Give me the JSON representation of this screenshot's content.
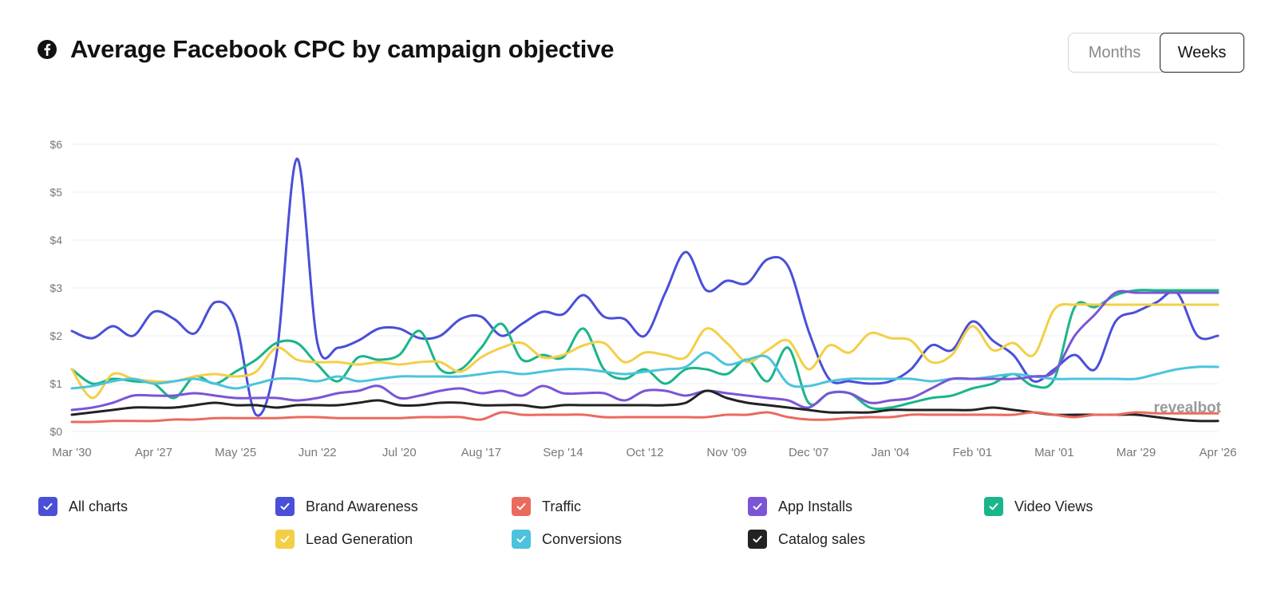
{
  "header": {
    "title": "Average Facebook CPC by campaign objective"
  },
  "toggle": {
    "months_label": "Months",
    "weeks_label": "Weeks",
    "selected": "Weeks"
  },
  "watermark": "revealbot",
  "legend": {
    "items": [
      {
        "label": "All charts",
        "color": "#4a4fd8",
        "checked": true
      },
      {
        "label": "Brand Awareness",
        "color": "#4a4fd8",
        "checked": true
      },
      {
        "label": "Traffic",
        "color": "#ea6a5e",
        "checked": true
      },
      {
        "label": "App Installs",
        "color": "#7b55d6",
        "checked": true
      },
      {
        "label": "Video Views",
        "color": "#1ab58a",
        "checked": true
      },
      {
        "label": "Lead Generation",
        "color": "#f3cf45",
        "checked": true
      },
      {
        "label": "Conversions",
        "color": "#4cc3dd",
        "checked": true
      },
      {
        "label": "Catalog sales",
        "color": "#222222",
        "checked": true
      }
    ]
  },
  "chart_data": {
    "type": "line",
    "title": "Average Facebook CPC by campaign objective",
    "xlabel": "",
    "ylabel": "",
    "x_tick_labels": [
      "Mar '30",
      "Apr '27",
      "May '25",
      "Jun '22",
      "Jul '20",
      "Aug '17",
      "Sep '14",
      "Oct '12",
      "Nov '09",
      "Dec '07",
      "Jan '04",
      "Feb '01",
      "Mar '01",
      "Mar '29",
      "Apr '26"
    ],
    "x_range": [
      0,
      56
    ],
    "ylim": [
      0,
      6
    ],
    "y_ticks": [
      0,
      1,
      2,
      3,
      4,
      5,
      6
    ],
    "y_tick_labels": [
      "$0",
      "$1",
      "$2",
      "$3",
      "$4",
      "$5",
      "$6"
    ],
    "grid": "horizontal",
    "legend_position": "bottom",
    "series": [
      {
        "name": "Brand Awareness",
        "color": "#4a4fd8",
        "x": [
          0,
          1,
          2,
          3,
          4,
          5,
          6,
          7,
          8,
          9,
          10,
          11,
          12,
          13,
          14,
          15,
          16,
          17,
          18,
          19,
          20,
          21,
          22,
          23,
          24,
          25,
          26,
          27,
          28,
          29,
          30,
          31,
          32,
          33,
          34,
          35,
          36,
          37,
          38,
          39,
          40,
          41,
          42,
          43,
          44,
          45,
          46,
          47,
          48,
          49,
          50,
          51,
          52,
          53,
          54,
          55,
          56
        ],
        "values": [
          2.1,
          1.95,
          2.2,
          2.0,
          2.5,
          2.35,
          2.05,
          2.7,
          2.3,
          0.35,
          1.6,
          5.7,
          1.85,
          1.75,
          1.9,
          2.15,
          2.15,
          1.95,
          2.0,
          2.35,
          2.4,
          2.0,
          2.25,
          2.5,
          2.45,
          2.85,
          2.4,
          2.35,
          2.0,
          2.9,
          3.75,
          2.95,
          3.15,
          3.1,
          3.6,
          3.45,
          2.1,
          1.1,
          1.05,
          1.0,
          1.05,
          1.3,
          1.8,
          1.7,
          2.3,
          1.9,
          1.6,
          1.05,
          1.3,
          1.6,
          1.3,
          2.3,
          2.5,
          2.7,
          2.9,
          2.0,
          2.0
        ]
      },
      {
        "name": "Video Views",
        "color": "#1ab58a",
        "x": [
          0,
          1,
          2,
          3,
          4,
          5,
          6,
          7,
          8,
          9,
          10,
          11,
          12,
          13,
          14,
          15,
          16,
          17,
          18,
          19,
          20,
          21,
          22,
          23,
          24,
          25,
          26,
          27,
          28,
          29,
          30,
          31,
          32,
          33,
          34,
          35,
          36,
          37,
          38,
          39,
          40,
          41,
          42,
          43,
          44,
          45,
          46,
          47,
          48,
          49,
          50,
          51,
          52,
          53,
          54,
          55,
          56
        ],
        "values": [
          1.3,
          1.0,
          1.1,
          1.05,
          1.0,
          0.7,
          1.15,
          1.0,
          1.25,
          1.5,
          1.85,
          1.85,
          1.4,
          1.05,
          1.55,
          1.5,
          1.6,
          2.1,
          1.3,
          1.3,
          1.75,
          2.25,
          1.5,
          1.6,
          1.55,
          2.15,
          1.3,
          1.1,
          1.3,
          1.0,
          1.3,
          1.3,
          1.2,
          1.5,
          1.05,
          1.75,
          0.6,
          0.8,
          0.8,
          0.5,
          0.5,
          0.6,
          0.7,
          0.75,
          0.9,
          1.0,
          1.2,
          0.95,
          1.1,
          2.6,
          2.6,
          2.85,
          2.95,
          2.95,
          2.95,
          2.95,
          2.95
        ]
      },
      {
        "name": "Lead Generation",
        "color": "#f3cf45",
        "x": [
          0,
          1,
          2,
          3,
          4,
          5,
          6,
          7,
          8,
          9,
          10,
          11,
          12,
          13,
          14,
          15,
          16,
          17,
          18,
          19,
          20,
          21,
          22,
          23,
          24,
          25,
          26,
          27,
          28,
          29,
          30,
          31,
          32,
          33,
          34,
          35,
          36,
          37,
          38,
          39,
          40,
          41,
          42,
          43,
          44,
          45,
          46,
          47,
          48,
          49,
          50,
          51,
          52,
          53,
          54,
          55,
          56
        ],
        "values": [
          1.3,
          0.7,
          1.2,
          1.1,
          1.05,
          1.05,
          1.15,
          1.2,
          1.15,
          1.25,
          1.75,
          1.5,
          1.45,
          1.45,
          1.4,
          1.45,
          1.4,
          1.45,
          1.45,
          1.25,
          1.55,
          1.75,
          1.85,
          1.55,
          1.6,
          1.8,
          1.85,
          1.45,
          1.65,
          1.6,
          1.55,
          2.15,
          1.85,
          1.45,
          1.7,
          1.9,
          1.3,
          1.8,
          1.65,
          2.05,
          1.95,
          1.9,
          1.45,
          1.6,
          2.2,
          1.7,
          1.85,
          1.6,
          2.55,
          2.65,
          2.65,
          2.65,
          2.65,
          2.65,
          2.65,
          2.65,
          2.65
        ]
      },
      {
        "name": "Conversions",
        "color": "#4cc3dd",
        "x": [
          0,
          1,
          2,
          3,
          4,
          5,
          6,
          7,
          8,
          9,
          10,
          11,
          12,
          13,
          14,
          15,
          16,
          17,
          18,
          19,
          20,
          21,
          22,
          23,
          24,
          25,
          26,
          27,
          28,
          29,
          30,
          31,
          32,
          33,
          34,
          35,
          36,
          37,
          38,
          39,
          40,
          41,
          42,
          43,
          44,
          45,
          46,
          47,
          48,
          49,
          50,
          51,
          52,
          53,
          54,
          55,
          56
        ],
        "values": [
          0.9,
          0.95,
          1.05,
          1.1,
          1.0,
          1.05,
          1.1,
          1.0,
          0.9,
          1.0,
          1.1,
          1.1,
          1.05,
          1.15,
          1.05,
          1.1,
          1.15,
          1.15,
          1.15,
          1.15,
          1.2,
          1.25,
          1.2,
          1.25,
          1.3,
          1.3,
          1.25,
          1.2,
          1.25,
          1.3,
          1.35,
          1.65,
          1.4,
          1.5,
          1.55,
          1.0,
          0.95,
          1.05,
          1.1,
          1.1,
          1.1,
          1.1,
          1.05,
          1.1,
          1.1,
          1.15,
          1.2,
          1.15,
          1.1,
          1.1,
          1.1,
          1.1,
          1.1,
          1.2,
          1.3,
          1.35,
          1.35
        ]
      },
      {
        "name": "App Installs",
        "color": "#7b55d6",
        "x": [
          0,
          1,
          2,
          3,
          4,
          5,
          6,
          7,
          8,
          9,
          10,
          11,
          12,
          13,
          14,
          15,
          16,
          17,
          18,
          19,
          20,
          21,
          22,
          23,
          24,
          25,
          26,
          27,
          28,
          29,
          30,
          31,
          32,
          33,
          34,
          35,
          36,
          37,
          38,
          39,
          40,
          41,
          42,
          43,
          44,
          45,
          46,
          47,
          48,
          49,
          50,
          51,
          52,
          53,
          54,
          55,
          56
        ],
        "values": [
          0.45,
          0.5,
          0.6,
          0.75,
          0.75,
          0.75,
          0.8,
          0.75,
          0.7,
          0.7,
          0.7,
          0.65,
          0.7,
          0.8,
          0.85,
          0.95,
          0.7,
          0.75,
          0.85,
          0.9,
          0.8,
          0.85,
          0.75,
          0.95,
          0.8,
          0.8,
          0.8,
          0.65,
          0.85,
          0.85,
          0.75,
          0.85,
          0.8,
          0.75,
          0.7,
          0.65,
          0.5,
          0.8,
          0.8,
          0.6,
          0.65,
          0.7,
          0.9,
          1.1,
          1.1,
          1.1,
          1.1,
          1.15,
          1.25,
          2.0,
          2.45,
          2.9,
          2.9,
          2.9,
          2.9,
          2.9,
          2.9
        ]
      },
      {
        "name": "Catalog sales",
        "color": "#222222",
        "x": [
          0,
          1,
          2,
          3,
          4,
          5,
          6,
          7,
          8,
          9,
          10,
          11,
          12,
          13,
          14,
          15,
          16,
          17,
          18,
          19,
          20,
          21,
          22,
          23,
          24,
          25,
          26,
          27,
          28,
          29,
          30,
          31,
          32,
          33,
          34,
          35,
          36,
          37,
          38,
          39,
          40,
          41,
          42,
          43,
          44,
          45,
          46,
          47,
          48,
          49,
          50,
          51,
          52,
          53,
          54,
          55,
          56
        ],
        "values": [
          0.35,
          0.4,
          0.45,
          0.5,
          0.5,
          0.5,
          0.55,
          0.6,
          0.55,
          0.55,
          0.5,
          0.55,
          0.55,
          0.55,
          0.6,
          0.65,
          0.55,
          0.55,
          0.6,
          0.6,
          0.55,
          0.55,
          0.55,
          0.5,
          0.55,
          0.55,
          0.55,
          0.55,
          0.55,
          0.55,
          0.6,
          0.85,
          0.7,
          0.6,
          0.55,
          0.5,
          0.45,
          0.4,
          0.4,
          0.4,
          0.45,
          0.45,
          0.45,
          0.45,
          0.45,
          0.5,
          0.45,
          0.4,
          0.35,
          0.35,
          0.35,
          0.35,
          0.35,
          0.3,
          0.25,
          0.22,
          0.22
        ]
      },
      {
        "name": "Traffic",
        "color": "#ea6a5e",
        "x": [
          0,
          1,
          2,
          3,
          4,
          5,
          6,
          7,
          8,
          9,
          10,
          11,
          12,
          13,
          14,
          15,
          16,
          17,
          18,
          19,
          20,
          21,
          22,
          23,
          24,
          25,
          26,
          27,
          28,
          29,
          30,
          31,
          32,
          33,
          34,
          35,
          36,
          37,
          38,
          39,
          40,
          41,
          42,
          43,
          44,
          45,
          46,
          47,
          48,
          49,
          50,
          51,
          52,
          53,
          54,
          55,
          56
        ],
        "values": [
          0.2,
          0.2,
          0.22,
          0.22,
          0.22,
          0.25,
          0.25,
          0.28,
          0.28,
          0.28,
          0.28,
          0.3,
          0.3,
          0.28,
          0.28,
          0.28,
          0.28,
          0.3,
          0.3,
          0.3,
          0.25,
          0.4,
          0.35,
          0.35,
          0.35,
          0.35,
          0.3,
          0.3,
          0.3,
          0.3,
          0.3,
          0.3,
          0.35,
          0.35,
          0.4,
          0.3,
          0.25,
          0.25,
          0.28,
          0.3,
          0.3,
          0.35,
          0.35,
          0.35,
          0.35,
          0.35,
          0.35,
          0.4,
          0.35,
          0.3,
          0.35,
          0.35,
          0.4,
          0.38,
          0.38,
          0.38,
          0.38
        ]
      }
    ]
  }
}
